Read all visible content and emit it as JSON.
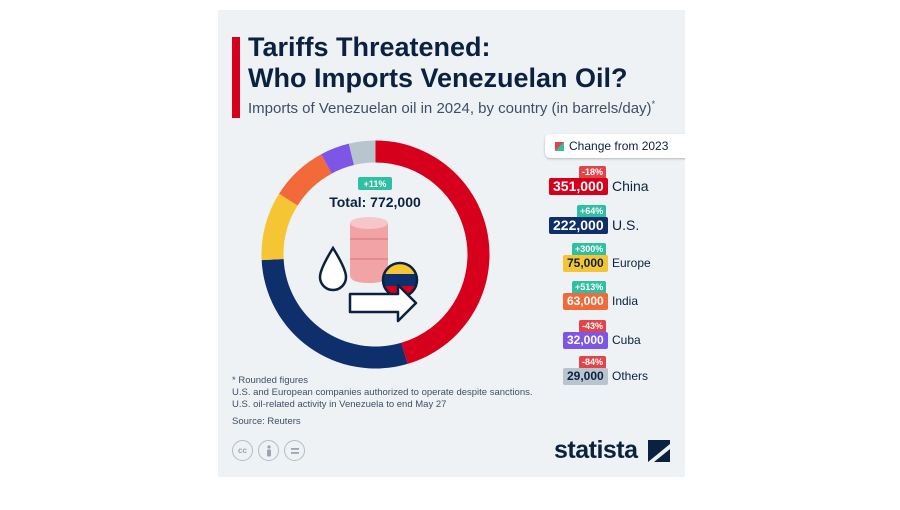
{
  "header": {
    "title_line1": "Tariffs Threatened:",
    "title_line2": "Who Imports Venezuelan Oil?",
    "subtitle": "Imports of Venezuelan oil in 2024, by country (in barrels/day)",
    "subtitle_mark": "*"
  },
  "donut_center": {
    "total_change": "+11%",
    "total_label": "Total: 772,000"
  },
  "legend_title": "Change from 2023",
  "chart_data": {
    "type": "pie",
    "title": "Tariffs Threatened: Who Imports Venezuelan Oil?",
    "subtitle": "Imports of Venezuelan oil in 2024, by country (in barrels/day)",
    "total": 772000,
    "total_change_pct": 11,
    "categories": [
      "China",
      "U.S.",
      "Europe",
      "India",
      "Cuba",
      "Others"
    ],
    "values": [
      351000,
      222000,
      75000,
      63000,
      32000,
      29000
    ],
    "value_labels": [
      "351,000",
      "222,000",
      "75,000",
      "63,000",
      "32,000",
      "29,000"
    ],
    "change_labels": [
      "-18%",
      "+64%",
      "+300%",
      "+513%",
      "-43%",
      "-84%"
    ],
    "change_from_2023_pct": [
      -18,
      64,
      300,
      513,
      -43,
      -84
    ],
    "colors": [
      "#d7001c",
      "#0e2f6b",
      "#f6c533",
      "#f26a3a",
      "#7e56e6",
      "#b8c5cf"
    ],
    "positive_color": "#2fbfa2",
    "negative_color": "#e3444a"
  },
  "notes": {
    "line1": "* Rounded figures",
    "line2": "U.S. and European companies authorized to operate despite sanctions.",
    "line3": "U.S. oil-related activity in Venezuela to end May 27",
    "source": "Source: Reuters"
  },
  "footer": {
    "logo": "statista",
    "license_icons": [
      "cc-icon",
      "attribution-icon",
      "no-derivatives-icon"
    ]
  }
}
